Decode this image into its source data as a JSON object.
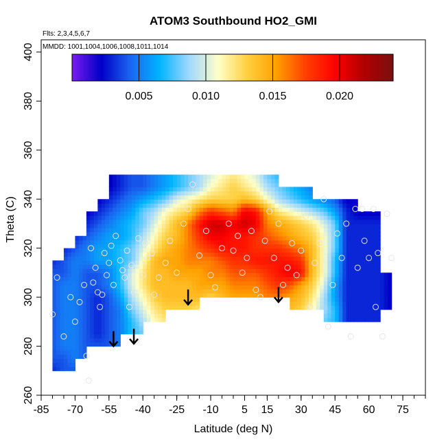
{
  "chart_data": {
    "type": "heatmap",
    "title": "ATOM3 Southbound HO2_GMI",
    "subtitle_flights": "Flts: 2,3,4,5,6,7",
    "subtitle_dates": "MMDD: 1001,1004,1006,1008,1011,1014",
    "xlabel": "Latitude (deg N)",
    "ylabel": "Theta (C)",
    "xlim": [
      -85,
      85
    ],
    "ylim": [
      260,
      405
    ],
    "x_tick_labels": [
      "-85",
      "-70",
      "-55",
      "-40",
      "-25",
      "-10",
      "5",
      "15",
      "30",
      "45",
      "60",
      "75"
    ],
    "x_tick_values": [
      -85,
      -70,
      -55,
      -40,
      -25,
      -10,
      5,
      15,
      30,
      45,
      60,
      75
    ],
    "y_tick_labels": [
      "260",
      "280",
      "300",
      "320",
      "340",
      "360",
      "380",
      "400"
    ],
    "y_tick_values": [
      260,
      280,
      300,
      320,
      340,
      360,
      380,
      400
    ],
    "colorbar": {
      "range": [
        0.0,
        0.024
      ],
      "tick_labels": [
        "0.005",
        "0.010",
        "0.015",
        "0.020"
      ],
      "tick_values": [
        0.005,
        0.01,
        0.015,
        0.02
      ],
      "colors": [
        "#7a1cf0",
        "#0000c8",
        "#1a66f0",
        "#00b4ff",
        "#9fd8ff",
        "#ffffc8",
        "#ffd040",
        "#ffa000",
        "#ff4000",
        "#ff0000",
        "#b00000",
        "#7a1010"
      ]
    },
    "field_lat": [
      -80,
      -75,
      -70,
      -65,
      -60,
      -55,
      -50,
      -45,
      -40,
      -35,
      -30,
      -25,
      -20,
      -15,
      -10,
      -5,
      0,
      5,
      10,
      15,
      20,
      25,
      30,
      35,
      40,
      45,
      50,
      55,
      60,
      65,
      70
    ],
    "field_theta": [
      270,
      275,
      280,
      285,
      290,
      295,
      300,
      305,
      310,
      315,
      320,
      325,
      330,
      335,
      340,
      345,
      350
    ],
    "field_value_matrix_rows_theta_cols_lat": [
      [
        0.003,
        0.004,
        0.004,
        null,
        null,
        null,
        null,
        null,
        null,
        null,
        null,
        null,
        null,
        null,
        null,
        null,
        null,
        null,
        null,
        null,
        null,
        null,
        null,
        null,
        null,
        null,
        null,
        null,
        null,
        null,
        null
      ],
      [
        0.004,
        0.004,
        0.005,
        0.004,
        null,
        null,
        null,
        null,
        null,
        null,
        null,
        null,
        null,
        null,
        null,
        null,
        null,
        null,
        null,
        null,
        null,
        null,
        null,
        null,
        null,
        null,
        null,
        null,
        null,
        null,
        null
      ],
      [
        0.004,
        0.005,
        0.005,
        0.004,
        0.004,
        0.004,
        0.005,
        null,
        null,
        null,
        null,
        null,
        null,
        null,
        null,
        null,
        null,
        null,
        null,
        null,
        null,
        null,
        null,
        null,
        null,
        null,
        null,
        null,
        null,
        null,
        null
      ],
      [
        0.004,
        0.005,
        0.005,
        0.004,
        0.003,
        0.004,
        0.005,
        0.007,
        0.008,
        null,
        null,
        null,
        null,
        null,
        null,
        null,
        null,
        null,
        null,
        null,
        null,
        null,
        null,
        null,
        null,
        null,
        null,
        null,
        null,
        null,
        null
      ],
      [
        0.004,
        0.005,
        0.005,
        0.004,
        0.003,
        0.004,
        0.005,
        0.007,
        0.009,
        0.011,
        0.012,
        null,
        null,
        null,
        null,
        null,
        null,
        null,
        null,
        null,
        null,
        null,
        null,
        null,
        0.008,
        0.007,
        0.003,
        0.003,
        0.003,
        0.003,
        null
      ],
      [
        0.004,
        0.005,
        0.005,
        0.004,
        0.003,
        0.004,
        0.005,
        0.008,
        0.01,
        0.012,
        0.013,
        0.013,
        0.013,
        0.012,
        null,
        null,
        null,
        null,
        null,
        null,
        null,
        0.014,
        0.013,
        0.011,
        0.009,
        0.007,
        0.003,
        0.003,
        0.003,
        0.003,
        0.002
      ],
      [
        0.004,
        0.005,
        0.005,
        0.004,
        0.003,
        0.004,
        0.006,
        0.009,
        0.011,
        0.013,
        0.014,
        0.014,
        0.014,
        0.014,
        0.013,
        0.014,
        0.015,
        0.015,
        0.015,
        0.016,
        0.016,
        0.015,
        0.014,
        0.012,
        0.009,
        0.006,
        0.003,
        0.003,
        0.003,
        0.003,
        0.002
      ],
      [
        0.004,
        0.005,
        0.005,
        0.004,
        0.004,
        0.005,
        0.007,
        0.01,
        0.012,
        0.014,
        0.014,
        0.014,
        0.014,
        0.015,
        0.015,
        0.015,
        0.016,
        0.016,
        0.016,
        0.017,
        0.018,
        0.017,
        0.015,
        0.013,
        0.01,
        0.006,
        0.003,
        0.003,
        0.003,
        0.003,
        0.002
      ],
      [
        0.004,
        0.004,
        0.005,
        0.004,
        0.004,
        0.005,
        0.007,
        0.01,
        0.012,
        0.014,
        0.014,
        0.015,
        0.015,
        0.015,
        0.016,
        0.016,
        0.017,
        0.017,
        0.017,
        0.018,
        0.019,
        0.02,
        0.019,
        0.014,
        0.011,
        0.007,
        0.003,
        0.003,
        0.003,
        0.003,
        0.002
      ],
      [
        0.003,
        0.004,
        0.005,
        0.005,
        0.006,
        0.006,
        0.007,
        0.008,
        0.011,
        0.014,
        0.015,
        0.015,
        0.016,
        0.016,
        0.016,
        0.017,
        0.018,
        0.018,
        0.019,
        0.019,
        0.019,
        0.019,
        0.018,
        0.014,
        0.011,
        0.007,
        0.003,
        0.003,
        0.003,
        0.003,
        null
      ],
      [
        null,
        0.003,
        0.004,
        0.005,
        0.006,
        0.006,
        0.007,
        0.008,
        0.01,
        0.012,
        0.014,
        0.015,
        0.016,
        0.017,
        0.018,
        0.019,
        0.019,
        0.019,
        0.018,
        0.018,
        0.018,
        0.017,
        0.016,
        0.014,
        0.011,
        0.008,
        0.003,
        0.003,
        0.003,
        0.003,
        null
      ],
      [
        null,
        null,
        0.003,
        0.004,
        0.005,
        0.006,
        0.006,
        0.007,
        0.009,
        0.011,
        0.013,
        0.014,
        0.016,
        0.018,
        0.02,
        0.02,
        0.019,
        0.019,
        0.018,
        0.017,
        0.016,
        0.015,
        0.014,
        0.013,
        0.011,
        0.008,
        0.003,
        0.003,
        0.003,
        0.003,
        null
      ],
      [
        null,
        null,
        null,
        0.003,
        0.004,
        0.005,
        0.006,
        0.007,
        0.008,
        0.01,
        0.012,
        0.014,
        0.016,
        0.019,
        0.021,
        0.021,
        0.02,
        0.021,
        0.02,
        0.016,
        0.015,
        0.014,
        0.013,
        0.012,
        0.01,
        0.008,
        0.003,
        0.003,
        0.003,
        0.003,
        null
      ],
      [
        null,
        null,
        null,
        0.002,
        0.003,
        0.004,
        0.005,
        0.006,
        0.008,
        0.009,
        0.011,
        0.012,
        0.013,
        0.016,
        0.018,
        0.017,
        0.016,
        0.02,
        0.019,
        0.015,
        0.012,
        0.011,
        0.01,
        0.009,
        0.008,
        0.006,
        0.003,
        0.002,
        0.002,
        0.002,
        null
      ],
      [
        null,
        null,
        null,
        null,
        0.002,
        0.003,
        0.004,
        0.005,
        0.006,
        0.007,
        0.008,
        0.01,
        0.011,
        0.012,
        0.013,
        0.013,
        0.013,
        0.014,
        0.013,
        0.011,
        0.009,
        0.008,
        0.007,
        0.006,
        0.005,
        0.004,
        0.002,
        0.002,
        null,
        null,
        null
      ],
      [
        null,
        null,
        null,
        null,
        null,
        0.002,
        0.003,
        0.004,
        0.004,
        0.005,
        0.006,
        0.007,
        0.008,
        0.009,
        0.011,
        0.012,
        0.013,
        0.012,
        0.011,
        0.009,
        0.008,
        0.007,
        0.006,
        0.005,
        null,
        null,
        null,
        null,
        null,
        null,
        null
      ],
      [
        null,
        null,
        null,
        null,
        null,
        0.002,
        0.003,
        0.004,
        0.004,
        0.005,
        0.006,
        0.007,
        0.008,
        0.009,
        0.01,
        0.011,
        0.012,
        0.011,
        0.01,
        0.008,
        0.007,
        null,
        null,
        null,
        null,
        null,
        null,
        null,
        null,
        null,
        null
      ]
    ],
    "observations": [
      [
        -80,
        293
      ],
      [
        -78,
        308
      ],
      [
        -75,
        284
      ],
      [
        -72,
        300
      ],
      [
        -70,
        290
      ],
      [
        -68,
        298
      ],
      [
        -66,
        305
      ],
      [
        -65,
        276
      ],
      [
        -64,
        266
      ],
      [
        -63,
        320
      ],
      [
        -62,
        306
      ],
      [
        -61,
        312
      ],
      [
        -60,
        302
      ],
      [
        -59,
        296
      ],
      [
        -58,
        301
      ],
      [
        -57,
        318
      ],
      [
        -56,
        309
      ],
      [
        -55,
        314
      ],
      [
        -54,
        321
      ],
      [
        -53,
        305
      ],
      [
        -52,
        325
      ],
      [
        -50,
        315
      ],
      [
        -49,
        311
      ],
      [
        -48,
        308
      ],
      [
        -47,
        319
      ],
      [
        -46,
        296
      ],
      [
        -45,
        313
      ],
      [
        -44,
        302
      ],
      [
        -43,
        282
      ],
      [
        -42,
        324
      ],
      [
        -40,
        309
      ],
      [
        -39,
        322
      ],
      [
        -38,
        316
      ],
      [
        -36,
        318
      ],
      [
        -35,
        301
      ],
      [
        -33,
        308
      ],
      [
        -30,
        314
      ],
      [
        -28,
        323
      ],
      [
        -25,
        310
      ],
      [
        -22,
        330
      ],
      [
        -20,
        336
      ],
      [
        -18,
        346
      ],
      [
        -15,
        317
      ],
      [
        -12,
        327
      ],
      [
        -10,
        309
      ],
      [
        -8,
        304
      ],
      [
        -5,
        320
      ],
      [
        -2,
        330
      ],
      [
        0,
        319
      ],
      [
        2,
        325
      ],
      [
        4,
        310
      ],
      [
        6,
        316
      ],
      [
        8,
        327
      ],
      [
        10,
        303
      ],
      [
        12,
        300
      ],
      [
        14,
        323
      ],
      [
        16,
        335
      ],
      [
        18,
        316
      ],
      [
        20,
        330
      ],
      [
        22,
        305
      ],
      [
        24,
        312
      ],
      [
        26,
        322
      ],
      [
        28,
        309
      ],
      [
        30,
        319
      ],
      [
        32,
        333
      ],
      [
        34,
        296
      ],
      [
        36,
        314
      ],
      [
        38,
        322
      ],
      [
        40,
        340
      ],
      [
        42,
        288
      ],
      [
        44,
        305
      ],
      [
        46,
        326
      ],
      [
        48,
        316
      ],
      [
        50,
        330
      ],
      [
        52,
        284
      ],
      [
        54,
        336
      ],
      [
        55,
        312
      ],
      [
        57,
        336
      ],
      [
        58,
        323
      ],
      [
        60,
        316
      ],
      [
        62,
        336
      ],
      [
        63,
        296
      ],
      [
        64,
        318
      ],
      [
        66,
        284
      ],
      [
        68,
        334
      ],
      [
        70,
        316
      ]
    ],
    "arrows": [
      {
        "lat": -53,
        "theta": 280
      },
      {
        "lat": -44,
        "theta": 281
      },
      {
        "lat": -20,
        "theta": 297
      },
      {
        "lat": 20,
        "theta": 298
      }
    ]
  }
}
